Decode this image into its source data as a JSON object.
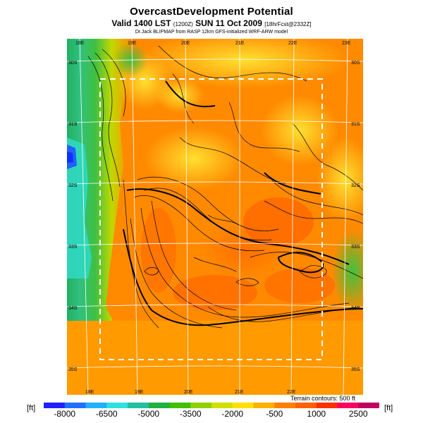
{
  "title": "OvercastDevelopment Potential",
  "subtitle_main": "Valid 1400 LST",
  "subtitle_small1": "(1200Z)",
  "subtitle_date": "SUN 11 Oct 2009",
  "subtitle_small2": "[18hrFcst@2332Z]",
  "credit": "Dr.Jack BLIPMAP from RASP 12km GFS-initialized WRF-ARW model",
  "map": {
    "top_lon_labels": [
      "18E",
      "19E",
      "20E",
      "21E",
      "22E",
      "23E"
    ],
    "bottom_lon_labels": [
      "18E",
      "19E",
      "20E",
      "21E",
      "22E"
    ],
    "left_lat_labels": [
      "30S",
      "31S",
      "32S",
      "33S",
      "34S",
      "35S"
    ],
    "right_lat_labels": [
      "30S",
      "31S",
      "32S",
      "33S",
      "34S",
      "35S"
    ],
    "terrain_note": "Terrain contours: 500 ft"
  },
  "scale": {
    "unit_left": "[ft]",
    "unit_right": "[ft]",
    "tick_labels": [
      "-8000",
      "-6500",
      "-5000",
      "-3500",
      "-2000",
      "-500",
      "1000",
      "2500"
    ],
    "colors": [
      "#2020ff",
      "#2070ff",
      "#20b0ff",
      "#30e0e0",
      "#20c0a0",
      "#20b040",
      "#40c000",
      "#90d000",
      "#d0e000",
      "#ffe000",
      "#ffb000",
      "#ff8000",
      "#ff6000",
      "#ff3000",
      "#ff0060",
      "#c00060"
    ]
  }
}
